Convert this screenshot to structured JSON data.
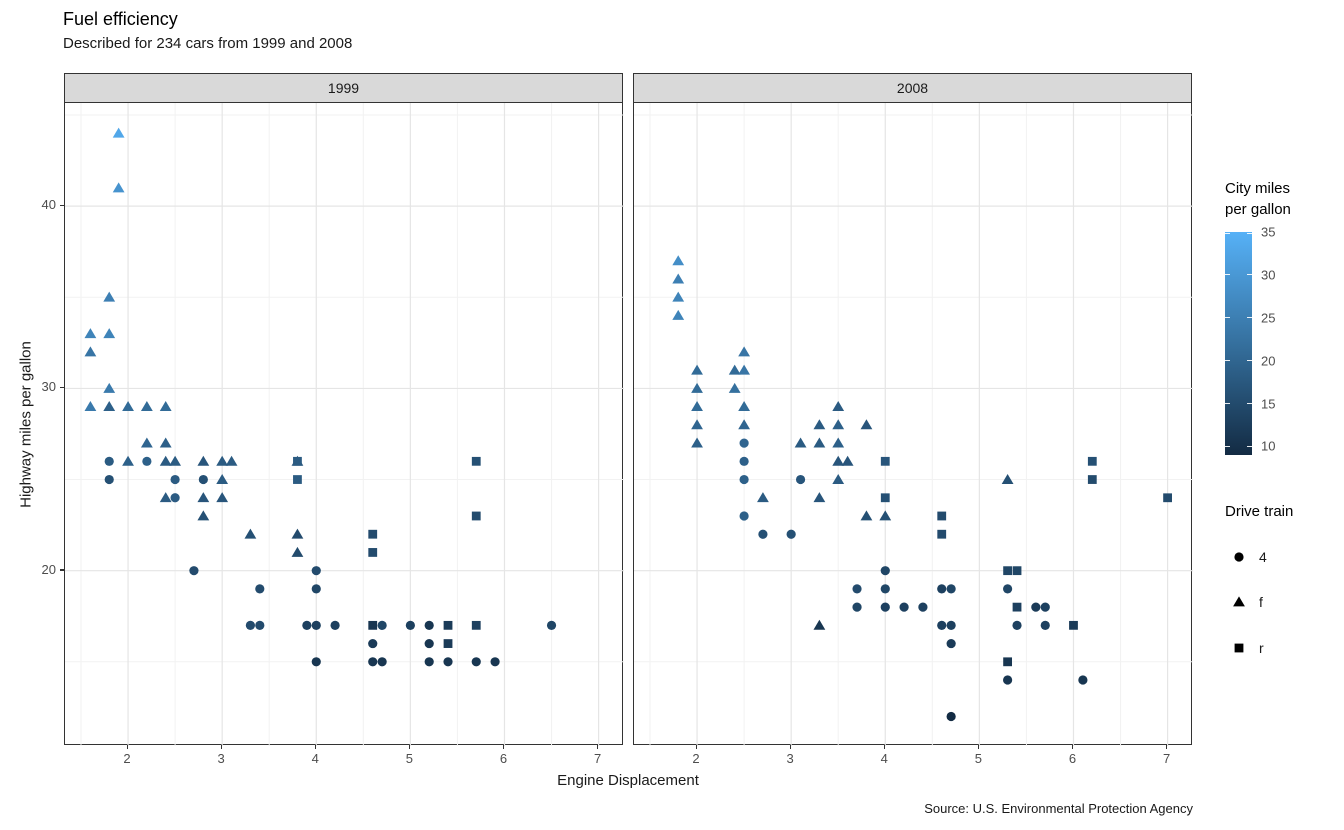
{
  "title": "Fuel efficiency",
  "subtitle": "Described for 234 cars from 1999 and 2008",
  "caption": "Source: U.S. Environmental Protection Agency",
  "x_axis": {
    "label": "Engine Displacement",
    "ticks": [
      2,
      3,
      4,
      5,
      6,
      7
    ],
    "minor": [
      1.5,
      2.5,
      3.5,
      4.5,
      5.5,
      6.5
    ],
    "domain": [
      1.33,
      7.27
    ]
  },
  "y_axis": {
    "label": "Highway miles per gallon",
    "ticks": [
      20,
      30,
      40
    ],
    "minor": [
      15,
      25,
      35,
      45
    ],
    "domain": [
      10.38,
      45.66
    ]
  },
  "facets": {
    "strip_1999": "1999",
    "strip_2008": "2008"
  },
  "style": {
    "strip_fill": "#d9d9d9",
    "panel_border": "#333333",
    "grid_major": "#e5e5e5",
    "grid_minor": "#f2f2f2",
    "gradient_high": "#56B1F7",
    "gradient_mid": "#35709E",
    "gradient_low": "#132B43"
  },
  "color_legend": {
    "title_line1": "City miles",
    "title_line2": "per gallon",
    "ticks": [
      35,
      30,
      25,
      20,
      15,
      10
    ],
    "domain": [
      9,
      35
    ]
  },
  "shape_legend": {
    "title": "Drive train",
    "items": [
      {
        "shape": "circle",
        "label": "4"
      },
      {
        "shape": "triangle",
        "label": "f"
      },
      {
        "shape": "square",
        "label": "r"
      }
    ]
  },
  "chart_data": {
    "type": "scatter",
    "facet_by": "year",
    "x_field": "displ",
    "y_field": "hwy",
    "color_field": "cty",
    "shape_field": "drv",
    "shape_map": {
      "4": "circle",
      "f": "triangle",
      "r": "square"
    },
    "panels": [
      {
        "year": "1999",
        "points": [
          [
            1.9,
            44,
            "f",
            33
          ],
          [
            1.9,
            41,
            "f",
            29
          ],
          [
            1.8,
            35,
            "f",
            25
          ],
          [
            1.6,
            33,
            "f",
            26
          ],
          [
            1.8,
            33,
            "f",
            26
          ],
          [
            1.6,
            32,
            "f",
            23
          ],
          [
            1.8,
            30,
            "f",
            24
          ],
          [
            1.6,
            29,
            "f",
            24
          ],
          [
            1.8,
            29,
            "f",
            19
          ],
          [
            2.0,
            29,
            "f",
            21
          ],
          [
            2.2,
            29,
            "f",
            21
          ],
          [
            2.4,
            29,
            "f",
            21
          ],
          [
            2.2,
            27,
            "f",
            20
          ],
          [
            2.4,
            27,
            "f",
            19
          ],
          [
            2.0,
            26,
            "f",
            19
          ],
          [
            2.4,
            26,
            "f",
            18
          ],
          [
            2.5,
            26,
            "f",
            18
          ],
          [
            2.8,
            26,
            "f",
            17
          ],
          [
            3.0,
            26,
            "f",
            18
          ],
          [
            3.1,
            26,
            "f",
            18
          ],
          [
            3.8,
            26,
            "f",
            17
          ],
          [
            3.0,
            25,
            "f",
            18
          ],
          [
            2.4,
            24,
            "f",
            18
          ],
          [
            2.8,
            24,
            "f",
            17
          ],
          [
            3.0,
            24,
            "f",
            17
          ],
          [
            2.8,
            23,
            "f",
            16
          ],
          [
            3.3,
            22,
            "f",
            16
          ],
          [
            3.8,
            22,
            "f",
            15
          ],
          [
            3.8,
            21,
            "f",
            15
          ],
          [
            1.8,
            26,
            "4",
            18
          ],
          [
            2.2,
            26,
            "4",
            19
          ],
          [
            1.8,
            25,
            "4",
            16
          ],
          [
            2.5,
            25,
            "4",
            18
          ],
          [
            2.8,
            25,
            "4",
            16
          ],
          [
            2.5,
            24,
            "4",
            18
          ],
          [
            2.7,
            20,
            "4",
            15
          ],
          [
            4.0,
            20,
            "4",
            15
          ],
          [
            3.4,
            19,
            "4",
            15
          ],
          [
            4.0,
            19,
            "4",
            14
          ],
          [
            3.3,
            17,
            "4",
            15
          ],
          [
            3.4,
            17,
            "4",
            15
          ],
          [
            3.9,
            17,
            "4",
            13
          ],
          [
            4.0,
            17,
            "4",
            13
          ],
          [
            4.2,
            17,
            "4",
            13
          ],
          [
            4.7,
            17,
            "4",
            14
          ],
          [
            5.0,
            17,
            "4",
            13
          ],
          [
            5.2,
            17,
            "4",
            11
          ],
          [
            6.5,
            17,
            "4",
            14
          ],
          [
            4.6,
            16,
            "4",
            12
          ],
          [
            5.2,
            16,
            "4",
            11
          ],
          [
            4.0,
            15,
            "4",
            11
          ],
          [
            4.6,
            15,
            "4",
            11
          ],
          [
            4.7,
            15,
            "4",
            11
          ],
          [
            5.2,
            15,
            "4",
            11
          ],
          [
            5.4,
            15,
            "4",
            11
          ],
          [
            5.7,
            15,
            "4",
            11
          ],
          [
            5.9,
            15,
            "4",
            11
          ],
          [
            3.8,
            26,
            "r",
            18
          ],
          [
            3.8,
            25,
            "r",
            18
          ],
          [
            4.6,
            22,
            "r",
            15
          ],
          [
            4.6,
            21,
            "r",
            15
          ],
          [
            5.7,
            26,
            "r",
            16
          ],
          [
            5.7,
            23,
            "r",
            15
          ],
          [
            4.6,
            17,
            "r",
            11
          ],
          [
            5.4,
            17,
            "r",
            12
          ],
          [
            5.7,
            17,
            "r",
            13
          ],
          [
            5.4,
            16,
            "r",
            12
          ]
        ]
      },
      {
        "year": "2008",
        "points": [
          [
            1.8,
            37,
            "f",
            28
          ],
          [
            1.8,
            36,
            "f",
            25
          ],
          [
            1.8,
            35,
            "f",
            26
          ],
          [
            1.8,
            34,
            "f",
            26
          ],
          [
            2.0,
            31,
            "f",
            21
          ],
          [
            2.0,
            30,
            "f",
            21
          ],
          [
            2.0,
            29,
            "f",
            21
          ],
          [
            2.0,
            28,
            "f",
            20
          ],
          [
            2.0,
            27,
            "f",
            19
          ],
          [
            2.4,
            31,
            "f",
            21
          ],
          [
            2.4,
            30,
            "f",
            22
          ],
          [
            2.5,
            32,
            "f",
            23
          ],
          [
            2.5,
            31,
            "f",
            23
          ],
          [
            2.5,
            29,
            "f",
            21
          ],
          [
            2.5,
            28,
            "f",
            20
          ],
          [
            2.7,
            24,
            "f",
            18
          ],
          [
            3.1,
            27,
            "f",
            18
          ],
          [
            3.3,
            27,
            "f",
            18
          ],
          [
            3.5,
            27,
            "f",
            19
          ],
          [
            3.3,
            28,
            "f",
            18
          ],
          [
            3.5,
            28,
            "f",
            19
          ],
          [
            3.8,
            28,
            "f",
            17
          ],
          [
            3.5,
            29,
            "f",
            18
          ],
          [
            3.5,
            26,
            "f",
            17
          ],
          [
            3.6,
            26,
            "f",
            17
          ],
          [
            3.5,
            25,
            "f",
            18
          ],
          [
            3.3,
            24,
            "f",
            17
          ],
          [
            3.8,
            23,
            "f",
            16
          ],
          [
            4.0,
            23,
            "f",
            16
          ],
          [
            3.3,
            17,
            "f",
            11
          ],
          [
            5.3,
            25,
            "f",
            16
          ],
          [
            2.5,
            27,
            "4",
            20
          ],
          [
            2.5,
            26,
            "4",
            19
          ],
          [
            2.5,
            25,
            "4",
            19
          ],
          [
            2.5,
            23,
            "4",
            19
          ],
          [
            3.1,
            25,
            "4",
            17
          ],
          [
            2.7,
            22,
            "4",
            16
          ],
          [
            3.0,
            22,
            "4",
            16
          ],
          [
            4.0,
            20,
            "4",
            14
          ],
          [
            3.7,
            19,
            "4",
            15
          ],
          [
            4.0,
            19,
            "4",
            14
          ],
          [
            4.6,
            19,
            "4",
            13
          ],
          [
            4.7,
            19,
            "4",
            14
          ],
          [
            5.3,
            19,
            "4",
            14
          ],
          [
            3.7,
            18,
            "4",
            14
          ],
          [
            4.0,
            18,
            "4",
            13
          ],
          [
            4.2,
            18,
            "4",
            13
          ],
          [
            4.4,
            18,
            "4",
            13
          ],
          [
            5.6,
            18,
            "4",
            12
          ],
          [
            5.7,
            18,
            "4",
            13
          ],
          [
            4.6,
            17,
            "4",
            13
          ],
          [
            4.7,
            17,
            "4",
            13
          ],
          [
            5.4,
            17,
            "4",
            13
          ],
          [
            5.7,
            17,
            "4",
            13
          ],
          [
            4.7,
            16,
            "4",
            12
          ],
          [
            5.3,
            14,
            "4",
            11
          ],
          [
            6.1,
            14,
            "4",
            11
          ],
          [
            4.7,
            12,
            "4",
            9
          ],
          [
            4.0,
            26,
            "r",
            17
          ],
          [
            4.0,
            24,
            "r",
            16
          ],
          [
            4.6,
            23,
            "r",
            15
          ],
          [
            4.6,
            22,
            "r",
            15
          ],
          [
            5.3,
            20,
            "r",
            14
          ],
          [
            5.4,
            20,
            "r",
            14
          ],
          [
            5.4,
            18,
            "r",
            13
          ],
          [
            6.0,
            17,
            "r",
            12
          ],
          [
            5.3,
            15,
            "r",
            11
          ],
          [
            6.2,
            26,
            "r",
            16
          ],
          [
            6.2,
            25,
            "r",
            15
          ],
          [
            7.0,
            24,
            "r",
            15
          ]
        ]
      }
    ]
  }
}
